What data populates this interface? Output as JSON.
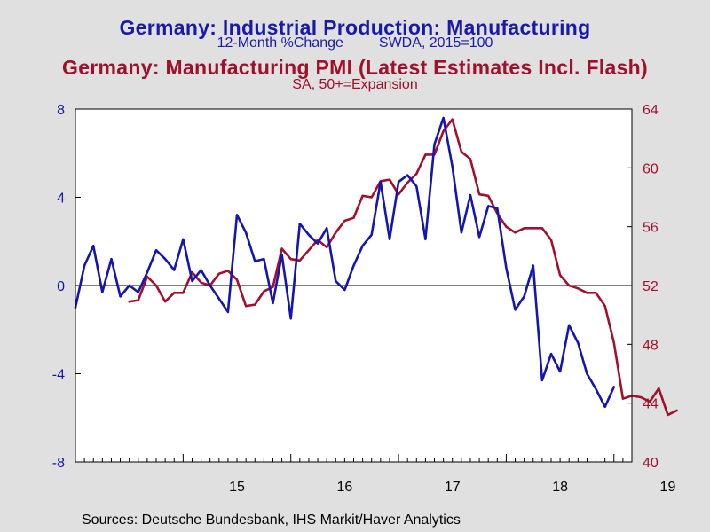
{
  "titles": {
    "line1": "Germany: Industrial Production: Manufacturing",
    "line1_sub_a": "12-Month %Change",
    "line1_sub_b": "SWDA, 2015=100",
    "line2": "Germany: Manufacturing PMI (Latest Estimates Incl. Flash)",
    "line2_sub": "SA, 50+=Expansion"
  },
  "sources": "Sources:  Deutsche Bundesbank, IHS Markit/Haver Analytics",
  "colors": {
    "ip": "#1515b0",
    "pmi": "#a3102b",
    "background": "#e0e0e0",
    "plot_background": "#ffffff"
  },
  "chart_data": {
    "type": "line",
    "grid": false,
    "x_axis": {
      "tick_labels": [
        "15",
        "16",
        "17",
        "18",
        "19"
      ],
      "tick_years": [
        2015,
        2016,
        2017,
        2018,
        2019
      ],
      "range": [
        "2014-01",
        "2019-03"
      ]
    },
    "left_axis": {
      "range": [
        -8,
        8
      ],
      "ticks": [
        -8,
        -4,
        0,
        4,
        8
      ],
      "tick_labels": [
        "-8",
        "-4",
        "0",
        "4",
        "8"
      ],
      "zero_line": true
    },
    "right_axis": {
      "range": [
        40,
        64
      ],
      "ticks": [
        40,
        44,
        48,
        52,
        56,
        60,
        64
      ],
      "tick_labels": [
        "40",
        "44",
        "48",
        "52",
        "56",
        "60",
        "64"
      ]
    },
    "series": [
      {
        "name": "Germany: Industrial Production: Manufacturing",
        "axis": "left",
        "start": "2014-01",
        "values": [
          -1.0,
          0.9,
          1.8,
          -0.3,
          1.2,
          -0.5,
          0.0,
          -0.3,
          0.6,
          1.6,
          1.2,
          0.7,
          2.1,
          0.2,
          0.7,
          0.0,
          -0.6,
          -1.2,
          3.2,
          2.4,
          1.1,
          1.2,
          -0.8,
          1.4,
          -1.5,
          2.8,
          2.3,
          1.9,
          2.6,
          0.2,
          -0.2,
          0.9,
          1.8,
          2.3,
          4.7,
          2.1,
          4.7,
          5.0,
          4.5,
          2.1,
          6.4,
          7.6,
          5.4,
          2.4,
          4.1,
          2.2,
          3.6,
          3.5,
          0.8,
          -1.1,
          -0.5,
          0.9,
          -4.3,
          -3.1,
          -3.9,
          -1.8,
          -2.6,
          -4.0,
          -4.7,
          -5.5,
          -4.6
        ]
      },
      {
        "name": "Germany: Manufacturing PMI (Latest Estimates Incl. Flash)",
        "axis": "right",
        "start": "2014-07",
        "values": [
          50.9,
          51.0,
          52.6,
          52.0,
          50.9,
          51.5,
          51.5,
          52.9,
          52.2,
          52.0,
          52.8,
          53.0,
          52.4,
          50.6,
          50.7,
          51.6,
          51.9,
          54.5,
          53.8,
          53.7,
          54.4,
          55.1,
          54.6,
          55.6,
          56.4,
          56.6,
          58.1,
          58.0,
          59.1,
          59.2,
          58.2,
          59.0,
          59.6,
          60.9,
          60.9,
          62.5,
          63.3,
          61.1,
          60.6,
          58.2,
          58.1,
          56.9,
          56.0,
          55.6,
          55.9,
          55.9,
          55.9,
          55.1,
          52.7,
          52.0,
          51.8,
          51.5,
          51.5,
          50.6,
          48.1,
          44.3,
          44.5,
          44.4,
          44.1,
          45.0,
          43.2,
          43.5
        ]
      }
    ]
  }
}
